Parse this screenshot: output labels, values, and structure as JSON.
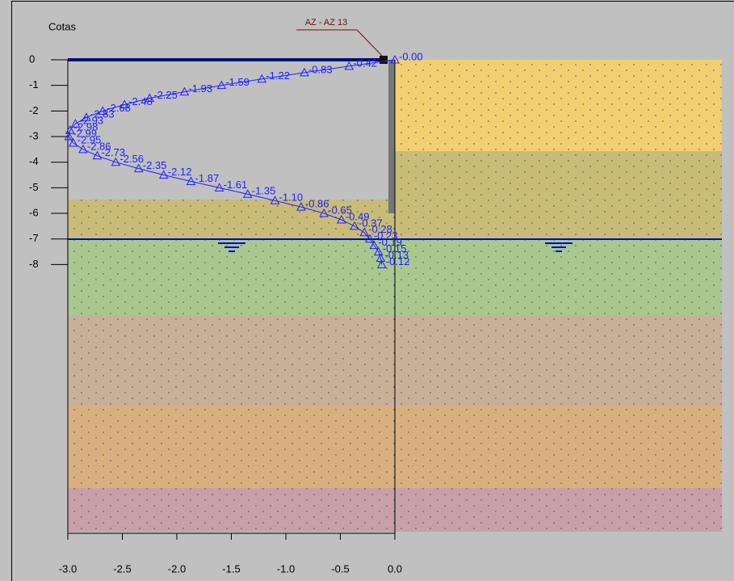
{
  "chart_data": {
    "type": "line",
    "y_label": "Cotas",
    "annotation": "AZ - AZ 13",
    "depths": [
      0,
      -0.25,
      -0.5,
      -0.75,
      -1.0,
      -1.25,
      -1.5,
      -1.75,
      -2.0,
      -2.25,
      -2.5,
      -2.75,
      -3.0,
      -3.25,
      -3.5,
      -3.75,
      -4.0,
      -4.25,
      -4.5,
      -4.75,
      -5.0,
      -5.25,
      -5.5,
      -5.75,
      -6.0,
      -6.25,
      -6.5,
      -6.75,
      -7.0,
      -7.25,
      -7.5,
      -7.75,
      -8.0
    ],
    "series": [
      {
        "color": "#2020ff",
        "values": [
          0,
          -0.42,
          -0.83,
          -1.22,
          -1.59,
          -1.93,
          -2.25,
          -2.48,
          -2.68,
          -2.83,
          -2.93,
          -2.98,
          -2.99,
          -2.95,
          -2.86,
          -2.73,
          -2.56,
          -2.35,
          -2.12,
          -1.87,
          -1.61,
          -1.35,
          -1.1,
          -0.86,
          -0.65,
          -0.49,
          -0.37,
          -0.28,
          -0.23,
          -0.19,
          -0.15,
          -0.13,
          -0.12
        ],
        "value_labels": [
          "-0.00",
          "-0.42",
          "-0.83",
          "-1.22",
          "-1.59",
          "-1.93",
          "-2.25",
          "-2.48",
          "-2.68",
          "-2.83",
          "-2.93",
          "-2.98",
          "-2.99",
          "-2.95",
          "-2.86",
          "-2.73",
          "-2.56",
          "-2.35",
          "-2.12",
          "-1.87",
          "-1.61",
          "-1.35",
          "-1.10",
          "-0.86",
          "-0.65",
          "-0.49",
          "-0.37",
          "-0.28",
          "-0.23",
          "-0.19",
          "-0.15",
          "-0.13",
          "-0.12"
        ]
      }
    ],
    "xlim": [
      -3.0,
      0
    ],
    "xticks": [
      {
        "value": -3,
        "label": "-3.0"
      },
      {
        "value": -2.5,
        "label": "-2.5"
      },
      {
        "value": -2,
        "label": "-2.0"
      },
      {
        "value": -1.5,
        "label": "-1.5"
      },
      {
        "value": -1,
        "label": "-1.0"
      },
      {
        "value": -0.5,
        "label": "-0.5"
      },
      {
        "value": 0,
        "label": "0.0"
      }
    ],
    "ylim": [
      -18.5,
      0
    ],
    "yticks": [
      0,
      -1,
      -2,
      -3,
      -4,
      -5,
      -6,
      -7,
      -8
    ]
  }
}
